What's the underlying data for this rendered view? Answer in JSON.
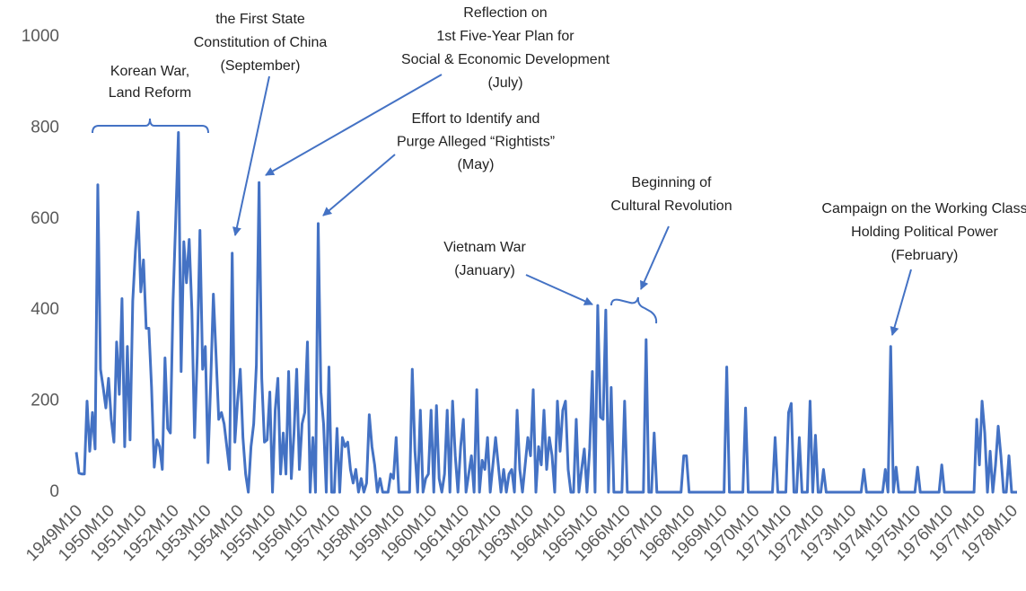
{
  "chart_data": {
    "type": "line",
    "categories": [
      "1949M10",
      null,
      null,
      null,
      null,
      null,
      null,
      null,
      null,
      null,
      null,
      null,
      "1950M10",
      null,
      null,
      null,
      null,
      null,
      null,
      null,
      null,
      null,
      null,
      null,
      "1951M10",
      null,
      null,
      null,
      null,
      null,
      null,
      null,
      null,
      null,
      null,
      null,
      "1952M10",
      null,
      null,
      null,
      null,
      null,
      null,
      null,
      null,
      null,
      null,
      null,
      "1953M10",
      null,
      null,
      null,
      null,
      null,
      null,
      null,
      null,
      null,
      null,
      null,
      "1954M10",
      null,
      null,
      null,
      null,
      null,
      null,
      null,
      null,
      null,
      null,
      null,
      "1955M10",
      null,
      null,
      null,
      null,
      null,
      null,
      null,
      null,
      null,
      null,
      null,
      "1956M10",
      null,
      null,
      null,
      null,
      null,
      null,
      null,
      null,
      null,
      null,
      null,
      "1957M10",
      null,
      null,
      null,
      null,
      null,
      null,
      null,
      null,
      null,
      null,
      null,
      "1958M10",
      null,
      null,
      null,
      null,
      null,
      null,
      null,
      null,
      null,
      null,
      null,
      "1959M10",
      null,
      null,
      null,
      null,
      null,
      null,
      null,
      null,
      null,
      null,
      null,
      "1960M10",
      null,
      null,
      null,
      null,
      null,
      null,
      null,
      null,
      null,
      null,
      null,
      "1961M10",
      null,
      null,
      null,
      null,
      null,
      null,
      null,
      null,
      null,
      null,
      null,
      "1962M10",
      null,
      null,
      null,
      null,
      null,
      null,
      null,
      null,
      null,
      null,
      null,
      "1963M10",
      null,
      null,
      null,
      null,
      null,
      null,
      null,
      null,
      null,
      null,
      null,
      "1964M10",
      null,
      null,
      null,
      null,
      null,
      null,
      null,
      null,
      null,
      null,
      null,
      "1965M10",
      null,
      null,
      null,
      null,
      null,
      null,
      null,
      null,
      null,
      null,
      null,
      "1966M10",
      null,
      null,
      null,
      null,
      null,
      null,
      null,
      null,
      null,
      null,
      null,
      "1967M10",
      null,
      null,
      null,
      null,
      null,
      null,
      null,
      null,
      null,
      null,
      null,
      "1968M10",
      null,
      null,
      null,
      null,
      null,
      null,
      null,
      null,
      null,
      null,
      null,
      "1969M10",
      null,
      null,
      null,
      null,
      null,
      null,
      null,
      null,
      null,
      null,
      null,
      "1970M10",
      null,
      null,
      null,
      null,
      null,
      null,
      null,
      null,
      null,
      null,
      null,
      "1971M10",
      null,
      null,
      null,
      null,
      null,
      null,
      null,
      null,
      null,
      null,
      null,
      "1972M10",
      null,
      null,
      null,
      null,
      null,
      null,
      null,
      null,
      null,
      null,
      null,
      "1973M10",
      null,
      null,
      null,
      null,
      null,
      null,
      null,
      null,
      null,
      null,
      null,
      "1974M10",
      null,
      null,
      null,
      null,
      null,
      null,
      null,
      null,
      null,
      null,
      null,
      "1975M10",
      null,
      null,
      null,
      null,
      null,
      null,
      null,
      null,
      null,
      null,
      null,
      "1976M10",
      null,
      null,
      null,
      null,
      null,
      null,
      null,
      null,
      null,
      null,
      null,
      "1977M10",
      null,
      null,
      null,
      null,
      null,
      null,
      null,
      null,
      null,
      null,
      null,
      "1978M10",
      null,
      null
    ],
    "values": [
      88,
      42,
      40,
      40,
      200,
      90,
      175,
      95,
      675,
      270,
      230,
      185,
      250,
      160,
      110,
      330,
      215,
      425,
      100,
      320,
      115,
      420,
      530,
      615,
      440,
      510,
      360,
      360,
      230,
      55,
      115,
      100,
      50,
      295,
      140,
      130,
      420,
      600,
      790,
      265,
      550,
      460,
      555,
      400,
      120,
      300,
      575,
      270,
      320,
      65,
      240,
      435,
      300,
      160,
      175,
      150,
      100,
      50,
      525,
      110,
      200,
      270,
      120,
      40,
      0,
      100,
      150,
      280,
      680,
      250,
      110,
      115,
      220,
      0,
      180,
      250,
      40,
      130,
      40,
      265,
      30,
      130,
      270,
      50,
      150,
      175,
      330,
      0,
      120,
      0,
      590,
      220,
      150,
      0,
      275,
      0,
      0,
      140,
      0,
      120,
      100,
      110,
      50,
      20,
      50,
      0,
      30,
      0,
      20,
      170,
      100,
      60,
      0,
      30,
      0,
      0,
      0,
      40,
      30,
      120,
      0,
      0,
      0,
      0,
      0,
      270,
      90,
      0,
      180,
      0,
      30,
      40,
      180,
      0,
      190,
      30,
      0,
      40,
      180,
      0,
      200,
      80,
      0,
      100,
      160,
      0,
      40,
      80,
      0,
      225,
      0,
      70,
      50,
      120,
      0,
      60,
      120,
      60,
      0,
      50,
      0,
      40,
      50,
      0,
      180,
      50,
      0,
      60,
      120,
      80,
      225,
      0,
      100,
      60,
      180,
      50,
      120,
      80,
      0,
      200,
      90,
      180,
      200,
      50,
      0,
      0,
      160,
      0,
      50,
      95,
      0,
      95,
      265,
      0,
      410,
      165,
      160,
      400,
      0,
      230,
      0,
      0,
      0,
      0,
      200,
      0,
      0,
      0,
      0,
      0,
      0,
      0,
      335,
      0,
      0,
      130,
      0,
      0,
      0,
      0,
      0,
      0,
      0,
      0,
      0,
      0,
      80,
      80,
      0,
      0,
      0,
      0,
      0,
      0,
      0,
      0,
      0,
      0,
      0,
      0,
      0,
      0,
      275,
      0,
      0,
      0,
      0,
      0,
      0,
      185,
      0,
      0,
      0,
      0,
      0,
      0,
      0,
      0,
      0,
      0,
      120,
      0,
      0,
      0,
      0,
      175,
      195,
      0,
      0,
      120,
      0,
      0,
      0,
      200,
      0,
      125,
      0,
      0,
      50,
      0,
      0,
      0,
      0,
      0,
      0,
      0,
      0,
      0,
      0,
      0,
      0,
      0,
      0,
      50,
      0,
      0,
      0,
      0,
      0,
      0,
      0,
      50,
      0,
      320,
      0,
      55,
      0,
      0,
      0,
      0,
      0,
      0,
      0,
      55,
      0,
      0,
      0,
      0,
      0,
      0,
      0,
      0,
      60,
      0,
      0,
      0,
      0,
      0,
      0,
      0,
      0,
      0,
      0,
      0,
      0,
      160,
      60,
      200,
      130,
      0,
      90,
      0,
      60,
      145,
      80,
      0,
      0,
      80,
      0,
      0,
      0
    ],
    "color": "#4472c4",
    "ylim": [
      0,
      1000
    ],
    "yticks": [
      0,
      200,
      400,
      600,
      800,
      1000
    ],
    "grid": false,
    "annotations": [
      {
        "lines": [
          "Korean War,",
          "Land Reform"
        ]
      },
      {
        "lines": [
          "the First State",
          "Constitution of China",
          "(September)"
        ]
      },
      {
        "lines": [
          "Reflection on",
          "1st Five-Year Plan for",
          "Social & Economic Development",
          "(July)"
        ]
      },
      {
        "lines": [
          "Effort to Identify and",
          "Purge Alleged “Rightists”",
          "(May)"
        ]
      },
      {
        "lines": [
          "Vietnam War",
          "(January)"
        ]
      },
      {
        "lines": [
          "Beginning of",
          "Cultural Revolution"
        ]
      },
      {
        "lines": [
          "Campaign on the Working Class",
          "Holding Political Power",
          "(February)"
        ]
      }
    ]
  }
}
